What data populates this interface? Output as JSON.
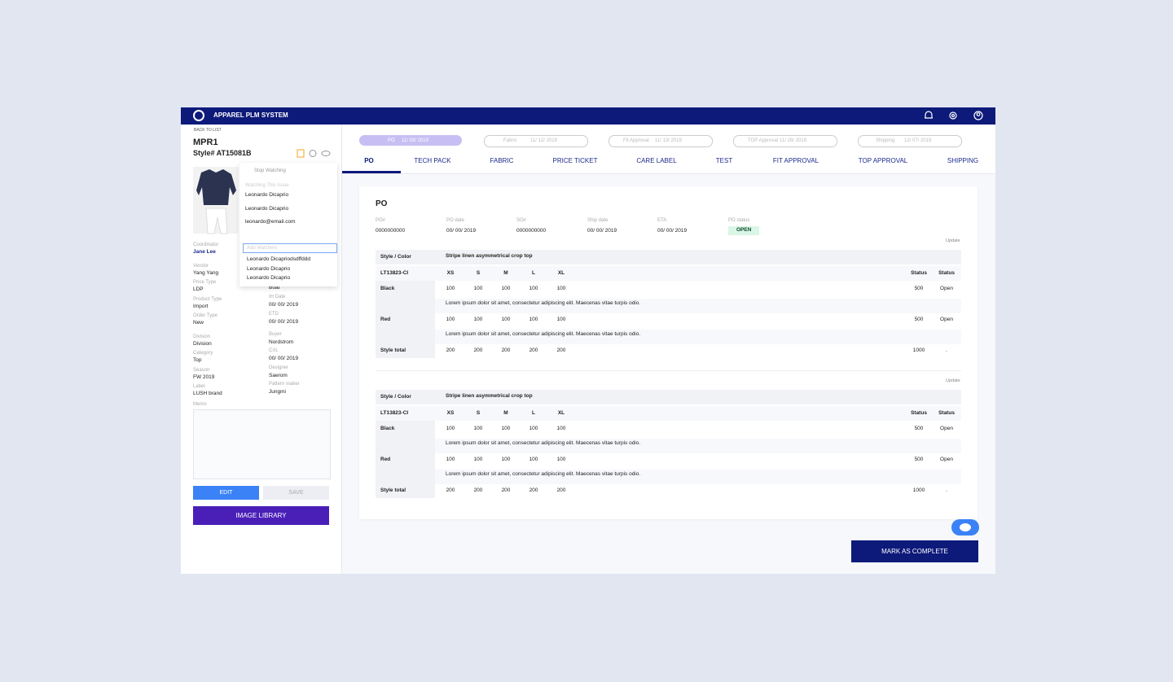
{
  "header": {
    "title": "APPAREL PLM SYSTEM"
  },
  "sidebar": {
    "back": "BACK TO LIST",
    "code": "MPR1",
    "style": "Style# AT15081B",
    "left_fields": [
      {
        "label": "Coordinator",
        "value": "Jane Lee"
      },
      {
        "label": "Vendor",
        "value": "Yang Yang"
      },
      {
        "label": "Price Type",
        "value": "LDP"
      },
      {
        "label": "Product Type",
        "value": "Import"
      },
      {
        "label": "Order Type",
        "value": "New"
      },
      {
        "label": "Division",
        "value": "Division"
      },
      {
        "label": "Category",
        "value": "Top"
      },
      {
        "label": "Season",
        "value": "FW 2019"
      },
      {
        "label": "Label",
        "value": "LUSH brand"
      }
    ],
    "right_fields": [
      {
        "value": "Boat"
      },
      {
        "label": "IH Date",
        "value": "00/ 00/ 2019"
      },
      {
        "label": "ETD",
        "value": "00/ 00/ 2019"
      },
      {
        "label": "Buyer",
        "value": "Nordstrom"
      },
      {
        "label": "CXL",
        "value": "00/ 00/ 2019"
      },
      {
        "label": "Designer",
        "value": "Saerom"
      },
      {
        "label": "Pattern maker",
        "value": "Jungmi"
      }
    ],
    "memo": "Memo",
    "edit": "EDIT",
    "save": "SAVE",
    "image_library": "IMAGE LIBRARY"
  },
  "watchers": {
    "stop": "Stop Watching",
    "heading": "Watching This Issue",
    "list": [
      "Leonardo Dicaprio",
      "Leonardo Dicaprio",
      "leonardo@email.com"
    ],
    "placeholder": "Add Watchers",
    "suggestions": [
      "Leonardo Dicapriodsdffddd",
      "Leonardo Dicaprio",
      "Leonardo Dicaprio"
    ]
  },
  "steps": [
    {
      "name": "PO",
      "date": "11/ 03/ 2019"
    },
    {
      "name": "Fabric",
      "date": "11/ 12/ 2019"
    },
    {
      "name": "Fit Approval",
      "date": "11/ 13/ 2019"
    },
    {
      "name": "TOP Approval",
      "date": "11/ 28/ 2019"
    },
    {
      "name": "Shipping",
      "date": "12/ 07/ 2019"
    }
  ],
  "tabs": [
    "PO",
    "TECH PACK",
    "FABRIC",
    "PRICE TICKET",
    "CARE LABEL",
    "TEST",
    "FIT APPROVAL",
    "TOP APPROVAL",
    "SHIPPING"
  ],
  "po": {
    "title": "PO",
    "info": [
      {
        "label": "PO#",
        "value": "0000000000"
      },
      {
        "label": "PO date",
        "value": "00/ 00/ 2019"
      },
      {
        "label": "SO#",
        "value": "0000000000"
      },
      {
        "label": "Ship date",
        "value": "00/ 00/ 2019"
      },
      {
        "label": "ETA",
        "value": "00/ 00/ 2019"
      },
      {
        "label": "PO status",
        "value": "OPEN"
      }
    ],
    "tables": [
      {
        "update": "Update",
        "header": {
          "label": "Style / Color",
          "title": "Stripe linen asymmetrical crop top"
        },
        "size_row": {
          "code": "LT13823-CI",
          "sizes": [
            "XS",
            "S",
            "M",
            "L",
            "XL"
          ],
          "status": [
            "Status",
            "Status"
          ]
        },
        "rows": [
          {
            "color": "Black",
            "qty": [
              "100",
              "100",
              "100",
              "100",
              "100"
            ],
            "total": "500",
            "status": "Open",
            "note": "Lorem ipsum dolor sit amet, consectetur adipiscing elit. Maecenas vitae turpis odio."
          },
          {
            "color": "Red",
            "qty": [
              "100",
              "100",
              "100",
              "100",
              "100"
            ],
            "total": "500",
            "status": "Open",
            "note": "Lorem ipsum dolor sit amet, consectetur adipiscing elit. Maecenas vitae turpis odio."
          }
        ],
        "total": {
          "label": "Style total",
          "qty": [
            "200",
            "200",
            "200",
            "200",
            "200"
          ],
          "total": "1000",
          "status": "."
        }
      },
      {
        "update": "Update",
        "header": {
          "label": "Style / Color",
          "title": "Stripe linen asymmetrical crop top"
        },
        "size_row": {
          "code": "LT13823-CI",
          "sizes": [
            "XS",
            "S",
            "M",
            "L",
            "XL"
          ],
          "status": [
            "Status",
            "Status"
          ]
        },
        "rows": [
          {
            "color": "Black",
            "qty": [
              "100",
              "100",
              "100",
              "100",
              "100"
            ],
            "total": "500",
            "status": "Open",
            "note": "Lorem ipsum dolor sit amet, consectetur adipiscing elit. Maecenas vitae turpis odio."
          },
          {
            "color": "Red",
            "qty": [
              "100",
              "100",
              "100",
              "100",
              "100"
            ],
            "total": "500",
            "status": "Open",
            "note": "Lorem ipsum dolor sit amet, consectetur adipiscing elit. Maecenas vitae turpis odio."
          }
        ],
        "total": {
          "label": "Style total",
          "qty": [
            "200",
            "200",
            "200",
            "200",
            "200"
          ],
          "total": "1000",
          "status": "."
        }
      }
    ]
  },
  "complete": "MARK AS COMPLETE"
}
